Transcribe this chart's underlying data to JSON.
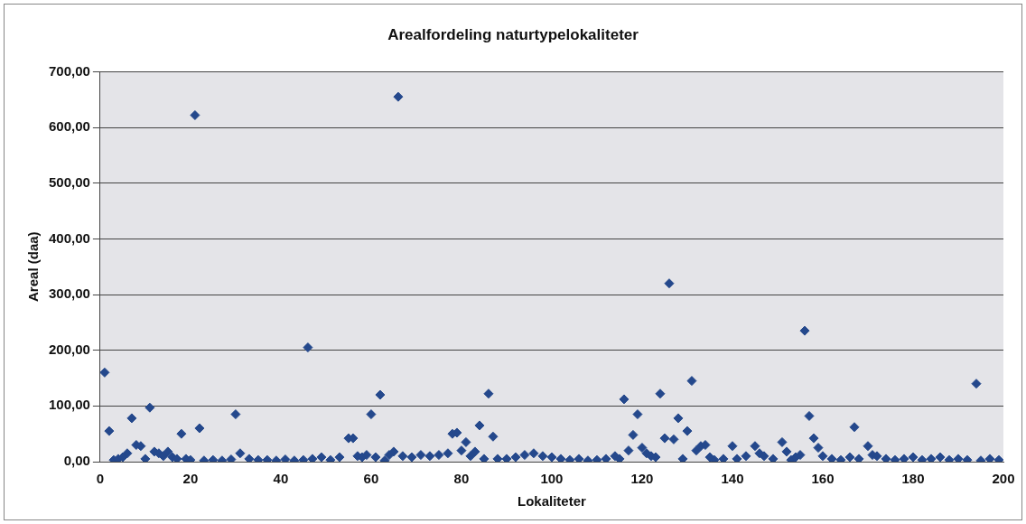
{
  "chart_data": {
    "type": "scatter",
    "title": "Arealfordeling naturtypelokaliteter",
    "xlabel": "Lokaliteter",
    "ylabel": "Areal (daa)",
    "x": [
      1,
      2,
      3,
      4,
      5,
      6,
      7,
      8,
      9,
      10,
      11,
      12,
      13,
      14,
      15,
      16,
      17,
      18,
      19,
      20,
      21,
      22,
      23,
      25,
      27,
      29,
      30,
      31,
      33,
      35,
      37,
      39,
      41,
      43,
      45,
      46,
      47,
      49,
      51,
      53,
      55,
      56,
      57,
      58,
      59,
      60,
      61,
      62,
      63,
      64,
      65,
      66,
      67,
      69,
      71,
      73,
      75,
      77,
      78,
      79,
      80,
      81,
      82,
      83,
      84,
      85,
      86,
      87,
      88,
      90,
      92,
      94,
      96,
      98,
      100,
      102,
      104,
      106,
      108,
      110,
      112,
      114,
      115,
      116,
      117,
      118,
      119,
      120,
      121,
      122,
      123,
      124,
      125,
      126,
      127,
      128,
      129,
      130,
      131,
      132,
      133,
      134,
      135,
      136,
      138,
      140,
      141,
      143,
      145,
      146,
      147,
      149,
      151,
      152,
      153,
      154,
      155,
      156,
      157,
      158,
      159,
      160,
      162,
      164,
      166,
      167,
      168,
      170,
      171,
      172,
      174,
      176,
      178,
      180,
      182,
      184,
      186,
      188,
      190,
      192,
      194,
      195,
      197,
      199
    ],
    "series": [
      {
        "color": "#24488c",
        "values": [
          160,
          55,
          3,
          5,
          8,
          15,
          78,
          30,
          28,
          5,
          97,
          18,
          15,
          10,
          18,
          8,
          5,
          50,
          5,
          3,
          622,
          60,
          2,
          3,
          2,
          4,
          85,
          15,
          5,
          3,
          3,
          2,
          4,
          2,
          3,
          205,
          5,
          8,
          3,
          8,
          42,
          42,
          10,
          8,
          12,
          85,
          8,
          120,
          2,
          12,
          18,
          655,
          10,
          8,
          12,
          10,
          12,
          15,
          50,
          52,
          20,
          35,
          10,
          18,
          65,
          5,
          122,
          45,
          5,
          5,
          8,
          12,
          15,
          10,
          8,
          5,
          3,
          5,
          2,
          3,
          5,
          10,
          5,
          112,
          20,
          48,
          85,
          25,
          15,
          10,
          8,
          122,
          42,
          320,
          40,
          78,
          5,
          55,
          145,
          20,
          28,
          30,
          8,
          3,
          5,
          28,
          5,
          10,
          28,
          15,
          10,
          5,
          35,
          18,
          3,
          8,
          12,
          235,
          82,
          42,
          25,
          10,
          5,
          3,
          8,
          62,
          5,
          28,
          12,
          10,
          5,
          3,
          5,
          8,
          3,
          5,
          8,
          3,
          5,
          3,
          140,
          2,
          5,
          3
        ]
      }
    ],
    "xlim": [
      0,
      200
    ],
    "xticks": [
      0,
      20,
      40,
      60,
      80,
      100,
      120,
      140,
      160,
      180,
      200
    ],
    "ylim": [
      0,
      700
    ],
    "yticks": [
      {
        "value": 0,
        "label": "0,00"
      },
      {
        "value": 100,
        "label": "100,00"
      },
      {
        "value": 200,
        "label": "200,00"
      },
      {
        "value": 300,
        "label": "300,00"
      },
      {
        "value": 400,
        "label": "400,00"
      },
      {
        "value": 500,
        "label": "500,00"
      },
      {
        "value": 600,
        "label": "600,00"
      },
      {
        "value": 700,
        "label": "700,00"
      }
    ],
    "grid": "y",
    "marker": "diamond",
    "legend": false
  }
}
